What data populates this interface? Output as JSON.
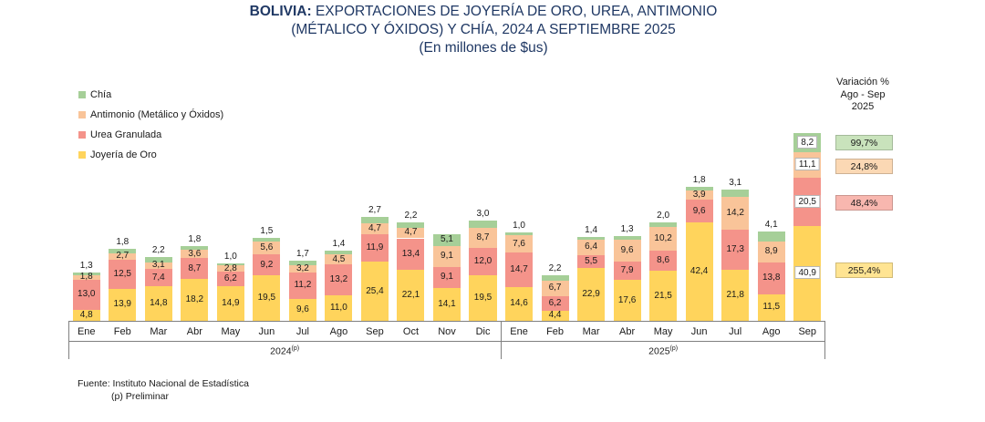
{
  "title": {
    "bold": "BOLIVIA:",
    "line1_rest": " EXPORTACIONES DE JOYERÍA DE ORO, UREA, ANTIMONIO",
    "line2": "(MÉTALICO Y ÓXIDOS) Y CHÍA, 2024 A SEPTIEMBRE 2025",
    "line3": "(En millones de $us)"
  },
  "legend": {
    "items": [
      {
        "label": "Chía",
        "color": "#A6CF98"
      },
      {
        "label": "Antimonio (Metálico y Óxidos)",
        "color": "#F9C499"
      },
      {
        "label": "Urea Granulada",
        "color": "#F4938A"
      },
      {
        "label": "Joyería de Oro",
        "color": "#FFD45C"
      }
    ]
  },
  "variation": {
    "header_line1": "Variación %",
    "header_line2": "Ago - Sep",
    "header_line3": "2025",
    "items": [
      {
        "series": "Chía",
        "value": "99,7%",
        "color": "#C9E3BC"
      },
      {
        "series": "Antimonio (Metálico y Óxidos)",
        "value": "24,8%",
        "color": "#FBD8B4"
      },
      {
        "series": "Urea Granulada",
        "value": "48,4%",
        "color": "#F8B7AF"
      },
      {
        "series": "Joyería de Oro",
        "value": "255,4%",
        "color": "#FFE492"
      }
    ]
  },
  "source": {
    "line1": "Fuente: Instituto Nacional de Estadística",
    "line2": "(p) Preliminar"
  },
  "chart_data": {
    "type": "bar",
    "stacked": true,
    "title": "BOLIVIA: EXPORTACIONES DE JOYERÍA DE ORO, UREA, ANTIMONIO (MÉTALICO Y ÓXIDOS) Y CHÍA, 2024 A SEPTIEMBRE 2025",
    "ylabel": "En millones de $us",
    "xlabel": "",
    "grid": false,
    "legend_position": "top-left",
    "ylim": [
      0,
      85
    ],
    "categories": [
      "Ene",
      "Feb",
      "Mar",
      "Abr",
      "May",
      "Jun",
      "Jul",
      "Ago",
      "Sep",
      "Oct",
      "Nov",
      "Dic",
      "Ene",
      "Feb",
      "Mar",
      "Abr",
      "May",
      "Jun",
      "Jul",
      "Ago",
      "Sep"
    ],
    "groups": [
      {
        "label": "2024",
        "mark": "(p)",
        "span": 12
      },
      {
        "label": "2025",
        "mark": "(p)",
        "span": 9
      }
    ],
    "series": [
      {
        "name": "Joyería de Oro",
        "color": "#FFD45C",
        "values": [
          4.8,
          13.9,
          14.8,
          18.2,
          14.9,
          19.5,
          9.6,
          11.0,
          25.4,
          22.1,
          14.1,
          19.5,
          14.6,
          4.4,
          22.9,
          17.6,
          21.5,
          42.4,
          21.8,
          11.5,
          40.9
        ]
      },
      {
        "name": "Urea Granulada",
        "color": "#F4938A",
        "values": [
          13.0,
          12.5,
          7.4,
          8.7,
          6.2,
          9.2,
          11.2,
          13.2,
          11.9,
          13.4,
          9.1,
          12.0,
          14.7,
          6.2,
          5.5,
          7.9,
          8.6,
          9.6,
          17.3,
          13.8,
          20.5
        ]
      },
      {
        "name": "Antimonio (Metálico y Óxidos)",
        "color": "#F9C499",
        "values": [
          1.8,
          2.7,
          3.1,
          3.6,
          2.8,
          5.6,
          3.2,
          4.5,
          4.7,
          4.7,
          9.1,
          8.7,
          7.6,
          6.7,
          6.4,
          9.6,
          10.2,
          3.9,
          14.2,
          8.9,
          11.1
        ]
      },
      {
        "name": "Chía",
        "color": "#A6CF98",
        "values": [
          1.3,
          1.8,
          2.2,
          1.8,
          1.0,
          1.5,
          1.7,
          1.4,
          2.7,
          2.2,
          5.1,
          3.0,
          1.0,
          2.2,
          1.4,
          1.3,
          2.0,
          1.8,
          3.1,
          4.1,
          8.2
        ]
      }
    ]
  }
}
